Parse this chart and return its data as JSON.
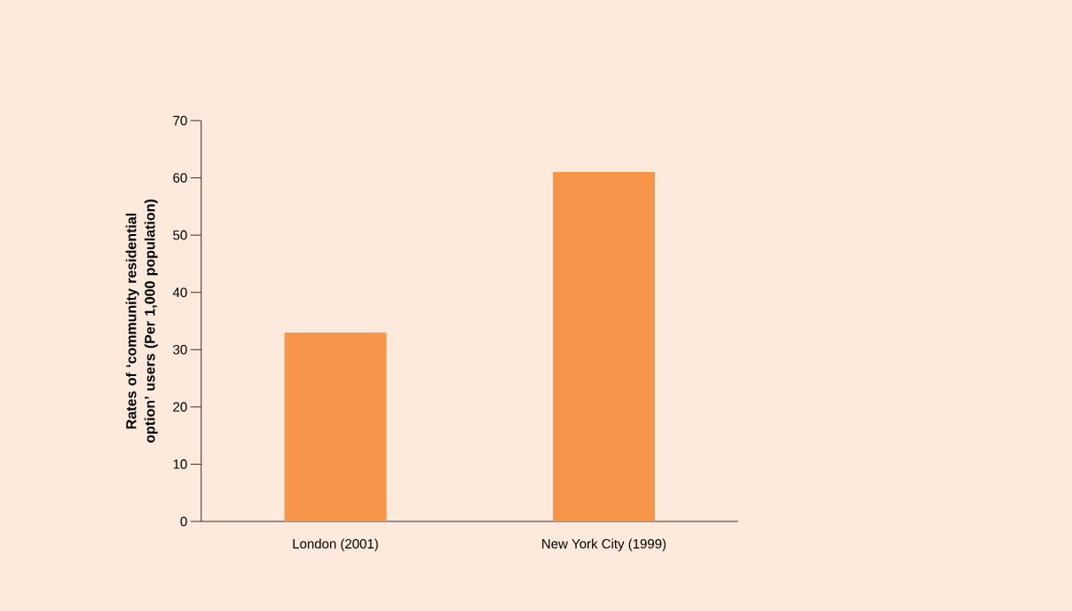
{
  "chart_data": {
    "type": "bar",
    "ylabel": "Rates of ‘community residential option’ users (Per 1,000 population)",
    "categories": [
      "London (2001)",
      "New York City (1999)"
    ],
    "values": [
      33,
      61
    ],
    "color": "#f7964a",
    "ylim": [
      0,
      70
    ],
    "yticks": [
      0,
      10,
      20,
      30,
      40,
      50,
      60,
      70
    ],
    "grid": false
  }
}
